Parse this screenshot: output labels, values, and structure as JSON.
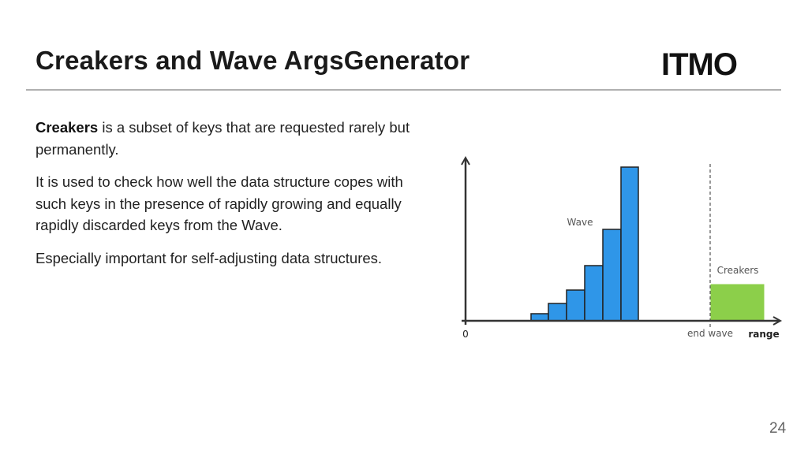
{
  "header": {
    "title": "Creakers and Wave ArgsGenerator",
    "logo": "ITMO"
  },
  "body": {
    "paragraphs": [
      {
        "bold": "Creakers",
        "text": " is a subset of keys that are requested rarely but permanently."
      },
      {
        "text": "It is used to check how well the data structure copes with such keys in the presence of rapidly growing and equally rapidly discarded keys from the Wave."
      },
      {
        "text": "Especially important for self-adjusting data structures."
      }
    ]
  },
  "diagram": {
    "wave_label": "Wave",
    "creakers_label": "Creakers",
    "origin_label": "0",
    "end_wave_label": "end wave",
    "range_label": "range"
  },
  "footer": {
    "page_number": "24"
  }
}
